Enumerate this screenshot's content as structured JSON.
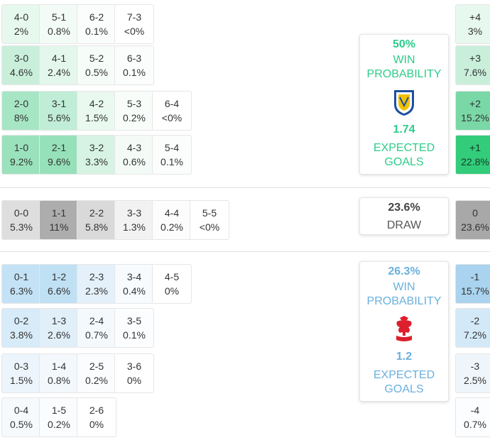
{
  "home": {
    "win_pct": "50%",
    "win_label": "WIN PROBABILITY",
    "xg": "1.74",
    "xg_label": "EXPECTED GOALS",
    "color": "#2ecc8a",
    "crest_icon": "leeds-united-crest-icon"
  },
  "draw": {
    "pct": "23.6%",
    "label": "DRAW"
  },
  "away": {
    "win_pct": "26.3%",
    "win_label": "WIN PROBABILITY",
    "xg": "1.2",
    "xg_label": "EXPECTED GOALS",
    "color": "#6ab0de",
    "crest_icon": "nottingham-forest-crest-icon"
  },
  "score_grid": [
    {
      "score": "4-0",
      "pct": "2%",
      "col": 0,
      "row": 0,
      "bg": "#e7f8ef"
    },
    {
      "score": "5-1",
      "pct": "0.8%",
      "col": 1,
      "row": 0,
      "bg": "#f3fbf7"
    },
    {
      "score": "6-2",
      "pct": "0.1%",
      "col": 2,
      "row": 0,
      "bg": "#fafdfb"
    },
    {
      "score": "7-3",
      "pct": "<0%",
      "col": 3,
      "row": 0,
      "bg": "#ffffff"
    },
    {
      "score": "3-0",
      "pct": "4.6%",
      "col": 0,
      "row": 1,
      "bg": "#c9efdb"
    },
    {
      "score": "4-1",
      "pct": "2.4%",
      "col": 1,
      "row": 1,
      "bg": "#e4f7ec"
    },
    {
      "score": "5-2",
      "pct": "0.5%",
      "col": 2,
      "row": 1,
      "bg": "#f6fcf8"
    },
    {
      "score": "6-3",
      "pct": "0.1%",
      "col": 3,
      "row": 1,
      "bg": "#fafdfb"
    },
    {
      "score": "2-0",
      "pct": "8%",
      "col": 0,
      "row": 2,
      "bg": "#a7e6c5"
    },
    {
      "score": "3-1",
      "pct": "5.6%",
      "col": 1,
      "row": 2,
      "bg": "#c0edd5"
    },
    {
      "score": "4-2",
      "pct": "1.5%",
      "col": 2,
      "row": 2,
      "bg": "#eaf9f0"
    },
    {
      "score": "5-3",
      "pct": "0.2%",
      "col": 3,
      "row": 2,
      "bg": "#f9fdfa"
    },
    {
      "score": "6-4",
      "pct": "<0%",
      "col": 4,
      "row": 2,
      "bg": "#ffffff"
    },
    {
      "score": "1-0",
      "pct": "9.2%",
      "col": 0,
      "row": 3,
      "bg": "#9ae2bc"
    },
    {
      "score": "2-1",
      "pct": "9.6%",
      "col": 1,
      "row": 3,
      "bg": "#96e1b9"
    },
    {
      "score": "3-2",
      "pct": "3.3%",
      "col": 2,
      "row": 3,
      "bg": "#d6f3e3"
    },
    {
      "score": "4-3",
      "pct": "0.6%",
      "col": 3,
      "row": 3,
      "bg": "#f4fbf7"
    },
    {
      "score": "5-4",
      "pct": "0.1%",
      "col": 4,
      "row": 3,
      "bg": "#fafdfb"
    },
    {
      "score": "0-0",
      "pct": "5.3%",
      "col": 0,
      "row": 4,
      "bg": "#dedede"
    },
    {
      "score": "1-1",
      "pct": "11%",
      "col": 1,
      "row": 4,
      "bg": "#adadad"
    },
    {
      "score": "2-2",
      "pct": "5.8%",
      "col": 2,
      "row": 4,
      "bg": "#d9d9d9"
    },
    {
      "score": "3-3",
      "pct": "1.3%",
      "col": 3,
      "row": 4,
      "bg": "#f2f2f2"
    },
    {
      "score": "4-4",
      "pct": "0.2%",
      "col": 4,
      "row": 4,
      "bg": "#fcfcfc"
    },
    {
      "score": "5-5",
      "pct": "<0%",
      "col": 5,
      "row": 4,
      "bg": "#ffffff"
    },
    {
      "score": "0-1",
      "pct": "6.3%",
      "col": 0,
      "row": 5,
      "bg": "#c4e2f5"
    },
    {
      "score": "1-2",
      "pct": "6.6%",
      "col": 1,
      "row": 5,
      "bg": "#c0e0f4"
    },
    {
      "score": "2-3",
      "pct": "2.3%",
      "col": 2,
      "row": 5,
      "bg": "#e4f1fa"
    },
    {
      "score": "3-4",
      "pct": "0.4%",
      "col": 3,
      "row": 5,
      "bg": "#f7fbfe"
    },
    {
      "score": "4-5",
      "pct": "0%",
      "col": 4,
      "row": 5,
      "bg": "#ffffff"
    },
    {
      "score": "0-2",
      "pct": "3.8%",
      "col": 0,
      "row": 6,
      "bg": "#d7ebf8"
    },
    {
      "score": "1-3",
      "pct": "2.6%",
      "col": 1,
      "row": 6,
      "bg": "#e1eff9"
    },
    {
      "score": "2-4",
      "pct": "0.7%",
      "col": 2,
      "row": 6,
      "bg": "#f4f9fd"
    },
    {
      "score": "3-5",
      "pct": "0.1%",
      "col": 3,
      "row": 6,
      "bg": "#fbfdfe"
    },
    {
      "score": "0-3",
      "pct": "1.5%",
      "col": 0,
      "row": 7,
      "bg": "#ecf5fb"
    },
    {
      "score": "1-4",
      "pct": "0.8%",
      "col": 1,
      "row": 7,
      "bg": "#f3f8fd"
    },
    {
      "score": "2-5",
      "pct": "0.2%",
      "col": 2,
      "row": 7,
      "bg": "#fafcfe"
    },
    {
      "score": "3-6",
      "pct": "0%",
      "col": 3,
      "row": 7,
      "bg": "#ffffff"
    },
    {
      "score": "0-4",
      "pct": "0.5%",
      "col": 0,
      "row": 8,
      "bg": "#f6fafd"
    },
    {
      "score": "1-5",
      "pct": "0.2%",
      "col": 1,
      "row": 8,
      "bg": "#fafcfe"
    },
    {
      "score": "2-6",
      "pct": "0%",
      "col": 2,
      "row": 8,
      "bg": "#ffffff"
    }
  ],
  "margins": [
    {
      "margin": "+4",
      "pct": "3%",
      "row": 0,
      "bg": "#e7f8ef"
    },
    {
      "margin": "+3",
      "pct": "7.6%",
      "row": 1,
      "bg": "#c9efdb"
    },
    {
      "margin": "+2",
      "pct": "15.2%",
      "row": 2,
      "bg": "#7ad8a7"
    },
    {
      "margin": "+1",
      "pct": "22.8%",
      "row": 3,
      "bg": "#33cc7a"
    },
    {
      "margin": "0",
      "pct": "23.6%",
      "row": 4,
      "bg": "#a8a8a8"
    },
    {
      "margin": "-1",
      "pct": "15.7%",
      "row": 5,
      "bg": "#a9d3ee"
    },
    {
      "margin": "-2",
      "pct": "7.2%",
      "row": 6,
      "bg": "#d3e9f7"
    },
    {
      "margin": "-3",
      "pct": "2.5%",
      "row": 7,
      "bg": "#eef6fb"
    },
    {
      "margin": "-4",
      "pct": "0.7%",
      "row": 8,
      "bg": "#fbfdfe"
    }
  ]
}
